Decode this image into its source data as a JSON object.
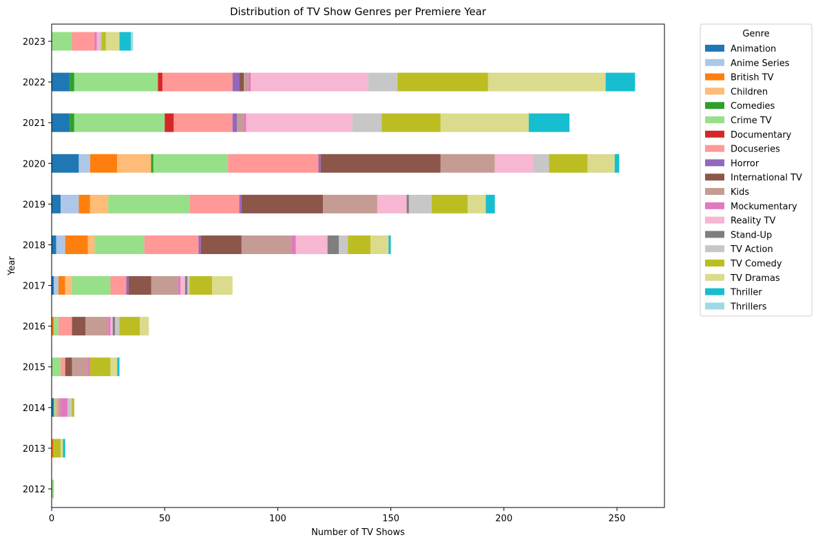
{
  "chart_data": {
    "type": "bar",
    "orientation": "horizontal",
    "stacked": true,
    "title": "Distribution of TV Show Genres per Premiere Year",
    "xlabel": "Number of TV Shows",
    "ylabel": "Year",
    "xlim": [
      0,
      271
    ],
    "xticks": [
      0,
      50,
      100,
      150,
      200,
      250
    ],
    "grid": false,
    "legend": {
      "title": "Genre",
      "placement": "outside right"
    },
    "categories": [
      "2012",
      "2013",
      "2014",
      "2015",
      "2016",
      "2017",
      "2018",
      "2019",
      "2020",
      "2021",
      "2022",
      "2023"
    ],
    "series": [
      {
        "name": "Animation",
        "color": "#1f77b4",
        "values": [
          0,
          0,
          1,
          0,
          0,
          1,
          2,
          4,
          12,
          8,
          8,
          0
        ]
      },
      {
        "name": "Anime Series",
        "color": "#aec7e8",
        "values": [
          0,
          0,
          0,
          0,
          0,
          2,
          4,
          8,
          5,
          0,
          0,
          0
        ]
      },
      {
        "name": "British TV",
        "color": "#ff7f0e",
        "values": [
          0,
          1,
          0,
          0,
          1,
          3,
          10,
          5,
          12,
          0,
          0,
          0
        ]
      },
      {
        "name": "Children",
        "color": "#ffbb78",
        "values": [
          0,
          0,
          0,
          0,
          0,
          3,
          3,
          8,
          15,
          0,
          0,
          0
        ]
      },
      {
        "name": "Comedies",
        "color": "#2ca02c",
        "values": [
          0,
          0,
          0,
          0,
          0,
          0,
          0,
          0,
          1,
          2,
          2,
          0
        ]
      },
      {
        "name": "Crime TV",
        "color": "#98df8a",
        "values": [
          1,
          0,
          1,
          4,
          2,
          17,
          22,
          36,
          33,
          40,
          37,
          9
        ]
      },
      {
        "name": "Documentary",
        "color": "#d62728",
        "values": [
          0,
          0,
          0,
          0,
          0,
          0,
          0,
          0,
          0,
          4,
          2,
          0
        ]
      },
      {
        "name": "Docuseries",
        "color": "#ff9896",
        "values": [
          0,
          0,
          1,
          2,
          6,
          7,
          24,
          22,
          40,
          26,
          31,
          10
        ]
      },
      {
        "name": "Horror",
        "color": "#9467bd",
        "values": [
          0,
          0,
          0,
          0,
          0,
          1,
          1,
          1,
          1,
          2,
          3,
          0
        ]
      },
      {
        "name": "International TV",
        "color": "#8c564b",
        "values": [
          0,
          0,
          0,
          3,
          6,
          10,
          18,
          36,
          53,
          0,
          2,
          0
        ]
      },
      {
        "name": "Kids",
        "color": "#c49c94",
        "values": [
          0,
          0,
          1,
          7,
          10,
          12,
          22,
          24,
          24,
          3,
          2,
          0
        ]
      },
      {
        "name": "Mockumentary",
        "color": "#e377c2",
        "values": [
          0,
          0,
          3,
          1,
          1,
          1,
          2,
          0,
          0,
          1,
          1,
          1
        ]
      },
      {
        "name": "Reality TV",
        "color": "#f7b6d2",
        "values": [
          0,
          0,
          0,
          0,
          1,
          2,
          14,
          13,
          17,
          47,
          52,
          1
        ]
      },
      {
        "name": "Stand-Up",
        "color": "#7f7f7f",
        "values": [
          0,
          0,
          0,
          0,
          1,
          1,
          5,
          1,
          0,
          0,
          0,
          0
        ]
      },
      {
        "name": "TV Action",
        "color": "#c7c7c7",
        "values": [
          0,
          0,
          2,
          0,
          2,
          1,
          4,
          10,
          7,
          13,
          13,
          1
        ]
      },
      {
        "name": "TV Comedy",
        "color": "#bcbd22",
        "values": [
          0,
          3,
          1,
          9,
          9,
          10,
          10,
          16,
          17,
          26,
          40,
          2
        ]
      },
      {
        "name": "TV Dramas",
        "color": "#dbdb8d",
        "values": [
          0,
          1,
          0,
          3,
          4,
          9,
          8,
          8,
          12,
          39,
          52,
          6
        ]
      },
      {
        "name": "Thriller",
        "color": "#17becf",
        "values": [
          0,
          1,
          0,
          1,
          0,
          0,
          1,
          4,
          2,
          18,
          13,
          5
        ]
      },
      {
        "name": "Thrillers",
        "color": "#9edae5",
        "values": [
          0,
          0,
          0,
          0,
          0,
          0,
          0,
          0,
          0,
          0,
          0,
          1
        ]
      }
    ]
  }
}
